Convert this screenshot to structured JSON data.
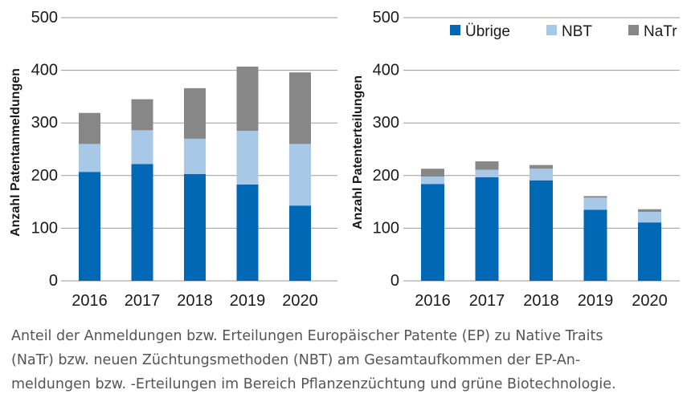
{
  "chart_data": [
    {
      "type": "bar",
      "stacked": true,
      "ylabel": "Anzahl Patentanmeldungen",
      "categories": [
        "2016",
        "2017",
        "2018",
        "2019",
        "2020"
      ],
      "yticks": [
        "0",
        "100",
        "200",
        "300",
        "400",
        "500"
      ],
      "ylim": [
        0,
        500
      ],
      "grid": true,
      "legend": false,
      "series": [
        {
          "name": "Übrige",
          "color": "#0068b4",
          "values": [
            207,
            222,
            203,
            183,
            143
          ]
        },
        {
          "name": "NBT",
          "color": "#a8c8e8",
          "values": [
            53,
            64,
            67,
            102,
            117
          ]
        },
        {
          "name": "NaTr",
          "color": "#878787",
          "values": [
            59,
            59,
            96,
            122,
            136
          ]
        }
      ]
    },
    {
      "type": "bar",
      "stacked": true,
      "ylabel": "Anzahl Patenterteilungen",
      "categories": [
        "2016",
        "2017",
        "2018",
        "2019",
        "2020"
      ],
      "yticks": [
        "0",
        "100",
        "200",
        "300",
        "400",
        "500"
      ],
      "ylim": [
        0,
        500
      ],
      "grid": true,
      "legend": true,
      "legend_position": "top-right",
      "series": [
        {
          "name": "Übrige",
          "color": "#0068b4",
          "values": [
            184,
            197,
            191,
            135,
            111
          ]
        },
        {
          "name": "NBT",
          "color": "#a8c8e8",
          "values": [
            14,
            14,
            22,
            23,
            20
          ]
        },
        {
          "name": "NaTr",
          "color": "#878787",
          "values": [
            15,
            16,
            7,
            3,
            5
          ]
        }
      ]
    }
  ],
  "caption": {
    "line1": "Anteil der Anmeldungen bzw. Erteilungen Europäischer Patente (EP) zu Native Traits",
    "line2": "(NaTr) bzw. neuen Züchtungsmethoden (NBT) am Gesamtaufkommen der EP-An-",
    "line3": "meldungen bzw. -Erteilungen im Bereich Pflanzenzüchtung und grüne Biotechnologie."
  }
}
